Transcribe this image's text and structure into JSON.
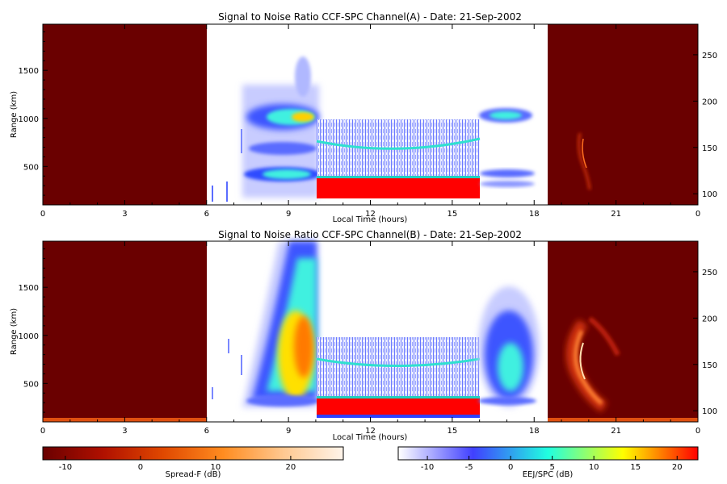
{
  "chart_data": [
    {
      "type": "heatmap",
      "title": "Signal to Noise Ratio CCF-SPC Channel(A) - Date: 21-Sep-2002",
      "xlabel": "Local Time (hours)",
      "ylabel": "Range (km)",
      "xlim": [
        0,
        24
      ],
      "ylim": [
        100,
        1980
      ],
      "x_ticks": [
        "0",
        "3",
        "6",
        "9",
        "12",
        "15",
        "18",
        "21",
        "0"
      ],
      "y_ticks": [
        500,
        1000,
        1500
      ],
      "y2_ticks": [
        100,
        150,
        200,
        250
      ],
      "y2lim": [
        88,
        283
      ],
      "regions": [
        {
          "kind": "spread-f-background",
          "x": [
            0,
            6
          ],
          "color": "#6a0000"
        },
        {
          "kind": "eej-echo",
          "x": [
            7.5,
            10
          ],
          "range": [
            150,
            1650
          ]
        },
        {
          "kind": "eej-spc-block",
          "x": [
            10,
            16
          ],
          "range": [
            140,
            1000
          ]
        },
        {
          "kind": "eej-echo",
          "x": [
            16,
            18.2
          ],
          "range": [
            250,
            1100
          ]
        },
        {
          "kind": "spread-f-background",
          "x": [
            18.5,
            24
          ],
          "color": "#6a0000"
        }
      ]
    },
    {
      "type": "heatmap",
      "title": "Signal to Noise Ratio CCF-SPC Channel(B) - Date: 21-Sep-2002",
      "xlabel": "Local Time (hours)",
      "ylabel": "Range (km)",
      "xlim": [
        0,
        24
      ],
      "ylim": [
        100,
        1980
      ],
      "x_ticks": [
        "0",
        "3",
        "6",
        "9",
        "12",
        "15",
        "18",
        "21",
        "0"
      ],
      "y_ticks": [
        500,
        1000,
        1500
      ],
      "y2_ticks": [
        100,
        150,
        200,
        250
      ],
      "y2lim": [
        88,
        283
      ],
      "regions": [
        {
          "kind": "spread-f-background",
          "x": [
            0,
            6
          ],
          "color": "#6a0000"
        },
        {
          "kind": "eej-echo",
          "x": [
            7.5,
            10
          ],
          "range": [
            200,
            1980
          ]
        },
        {
          "kind": "eej-spc-block",
          "x": [
            10,
            16
          ],
          "range": [
            140,
            1000
          ]
        },
        {
          "kind": "eej-echo",
          "x": [
            16,
            18.2
          ],
          "range": [
            250,
            1700
          ]
        },
        {
          "kind": "spread-f-background",
          "x": [
            18.5,
            24
          ],
          "color": "#6a0000"
        }
      ]
    }
  ],
  "colorbars": [
    {
      "label": "Spread-F (dB)",
      "ticks": [
        -10,
        0,
        10,
        20
      ],
      "range": [
        -13,
        27
      ],
      "colors": [
        "#6a0000",
        "#b01000",
        "#e04800",
        "#ff8c20",
        "#ffc890",
        "#fff4ea"
      ]
    },
    {
      "label": "EEJ/SPC (dB)",
      "ticks": [
        -10,
        -5,
        0,
        5,
        10,
        15,
        20
      ],
      "range": [
        -13.5,
        22.5
      ],
      "colors": [
        "#ffffff",
        "#4040ff",
        "#20ffe0",
        "#ffff00",
        "#ff0000"
      ]
    }
  ]
}
